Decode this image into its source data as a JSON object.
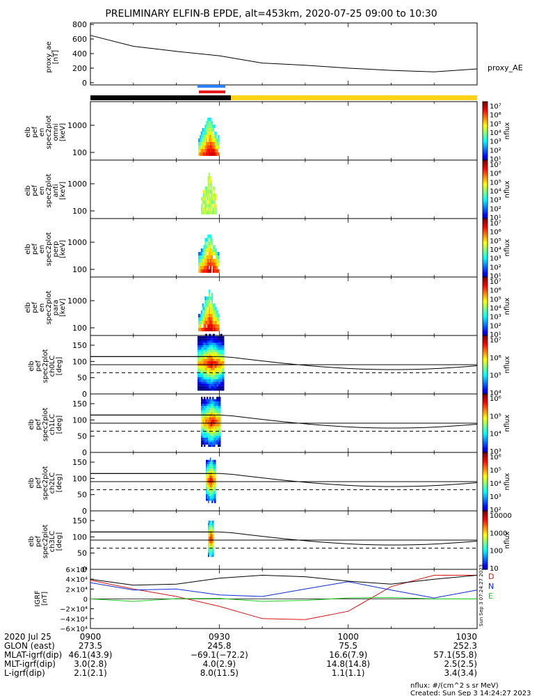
{
  "title": "PRELIMINARY ELFIN-B EPDE, alt=453km, 2020-07-25 09:00 to 10:30",
  "colors": {
    "black_bar": "#000000",
    "yellow_bar": "#ffd21a",
    "blue_bar": "#2a80ff",
    "red_bar": "#e61a1a",
    "bx": "#d91414",
    "by": "#0a2ad9",
    "bz": "#19c419",
    "frame": "#000000"
  },
  "ae": {
    "ylabel": "proxy_ae\n[nT]",
    "legend": "proxy_AE",
    "ticks": [
      "800",
      "600",
      "400",
      "200",
      "0"
    ],
    "tick_values": [
      800,
      600,
      400,
      200,
      0
    ],
    "ylim": [
      -30,
      820
    ]
  },
  "energy_panels": [
    {
      "label": [
        "elb",
        "pef",
        "en",
        "spec2plot",
        "omni",
        "[keV]"
      ],
      "ticks": [
        "1000",
        "100"
      ],
      "cb_ticks": [
        "10⁷",
        "10⁶",
        "10⁵",
        "10⁴",
        "10³",
        "10²",
        "10¹"
      ],
      "cb_label": "nflux"
    },
    {
      "label": [
        "elb",
        "pef",
        "en",
        "spec2plot",
        "anti",
        "[keV]"
      ],
      "ticks": [
        "1000",
        "100"
      ],
      "cb_ticks": [
        "10⁷",
        "10⁶",
        "10⁵",
        "10⁴",
        "10³",
        "10²",
        "10¹"
      ],
      "cb_label": "nflux"
    },
    {
      "label": [
        "elb",
        "pef",
        "en",
        "spec2plot",
        "perp",
        "[keV]"
      ],
      "ticks": [
        "1000",
        "100"
      ],
      "cb_ticks": [
        "10⁷",
        "10⁶",
        "10⁵",
        "10⁴",
        "10³",
        "10²",
        "10¹"
      ],
      "cb_label": "nflux"
    },
    {
      "label": [
        "elb",
        "pef",
        "en",
        "spec2plot",
        "para",
        "[keV]"
      ],
      "ticks": [
        "1000",
        "100"
      ],
      "cb_ticks": [
        "10⁷",
        "10⁶",
        "10⁵",
        "10⁴",
        "10³",
        "10²",
        "10¹"
      ],
      "cb_label": "nflux"
    }
  ],
  "pa_panels": [
    {
      "label": [
        "elb",
        "pef",
        "pa",
        "spec2plot",
        "ch0LC",
        "[deg]"
      ],
      "ticks": [
        "150",
        "100",
        "50",
        "0"
      ],
      "cb_ticks": [
        "10⁷",
        "10⁶",
        "10⁵",
        "10⁴"
      ],
      "cb_label": "nflux"
    },
    {
      "label": [
        "elb",
        "pef",
        "pa",
        "spec2plot",
        "ch1LC",
        "[deg]"
      ],
      "ticks": [
        "150",
        "100",
        "50",
        "0"
      ],
      "cb_ticks": [
        "10⁶",
        "10⁵",
        "10⁴",
        "10³"
      ],
      "cb_label": "nflux"
    },
    {
      "label": [
        "elb",
        "pef",
        "pa",
        "spec2plot",
        "ch2LC",
        "[deg]"
      ],
      "ticks": [
        "150",
        "100",
        "50",
        "0"
      ],
      "cb_ticks": [
        "10⁶",
        "10⁵",
        "10⁴",
        "10³",
        "10²"
      ],
      "cb_label": "nflux"
    },
    {
      "label": [
        "elb",
        "pef",
        "pa",
        "spec2plot",
        "ch3LC",
        "[deg]"
      ],
      "ticks": [
        "150",
        "100",
        "50",
        "0"
      ],
      "cb_ticks": [
        "10000",
        "1000",
        "100",
        "10"
      ],
      "cb_label": "nflux"
    }
  ],
  "igrf": {
    "ylabel": "IGRF\n[nT]",
    "ticks": [
      "6×10⁴",
      "4×10⁴",
      "2×10⁴",
      "0",
      "−2×10⁴",
      "−4×10⁴",
      "−6×10⁴"
    ],
    "tick_values": [
      60000,
      40000,
      20000,
      0,
      -20000,
      -40000,
      -60000
    ],
    "legend": [
      "D",
      "N",
      "E"
    ],
    "side_text": "Sun Sep  3 07:24:27 2023"
  },
  "footer": {
    "row_labels": [
      "2020 Jul 25",
      "GLON (east)",
      "MLAT-igrf(dip)",
      "MLT-igrf(dip)",
      "L-igrf(dip)"
    ],
    "columns": [
      {
        "time": "0900",
        "values": [
          "273.5",
          "46.1(43.9)",
          "3.0(2.8)",
          "2.1(2.1)"
        ]
      },
      {
        "time": "0930",
        "values": [
          "245.8",
          "−69.1(−72.2)",
          "4.0(2.9)",
          "8.0(11.5)"
        ]
      },
      {
        "time": "1000",
        "values": [
          "75.5",
          "16.6(7.9)",
          "14.8(14.8)",
          "1.1(1.1)"
        ]
      },
      {
        "time": "1030",
        "values": [
          "252.3",
          "57.1(55.8)",
          "2.5(2.5)",
          "3.4(3.4)"
        ]
      }
    ],
    "units": "nflux: #/(cm^2 s sr MeV)",
    "created": "Created: Sun Sep  3 14:24:27 2023"
  },
  "chart_data": {
    "type": "line",
    "panels": [
      {
        "name": "proxy_AE",
        "x": [
          "09:00",
          "09:10",
          "09:20",
          "09:30",
          "09:40",
          "09:50",
          "10:00",
          "10:10",
          "10:20",
          "10:30"
        ],
        "values": [
          650,
          500,
          430,
          370,
          270,
          240,
          200,
          170,
          150,
          190
        ],
        "ylim": [
          -30,
          820
        ]
      },
      {
        "name": "IGRF",
        "x": [
          "09:00",
          "09:10",
          "09:20",
          "09:30",
          "09:40",
          "09:50",
          "10:00",
          "10:10",
          "10:20",
          "10:30"
        ],
        "series": [
          {
            "name": "D",
            "values": [
              38000,
              20000,
              5000,
              -15000,
              -40000,
              -42000,
              -25000,
              25000,
              48000,
              48000
            ]
          },
          {
            "name": "N",
            "values": [
              33000,
              18000,
              20000,
              8000,
              5000,
              20000,
              35000,
              18000,
              2000,
              18000
            ]
          },
          {
            "name": "E",
            "values": [
              0,
              -5000,
              500,
              1000,
              -5000,
              -3000,
              2000,
              3000,
              0,
              0
            ]
          },
          {
            "name": "total",
            "values": [
              40000,
              28000,
              30000,
              42000,
              48000,
              45000,
              36000,
              30000,
              40000,
              48000
            ]
          }
        ],
        "ylim": [
          -60000,
          60000
        ]
      }
    ],
    "energy_ylim_keV": [
      60,
      6000
    ],
    "pa_ylim_deg": [
      0,
      180
    ],
    "loss_cone_deg": [
      90,
      115,
      65
    ],
    "event_time": "09:20-09:30"
  }
}
